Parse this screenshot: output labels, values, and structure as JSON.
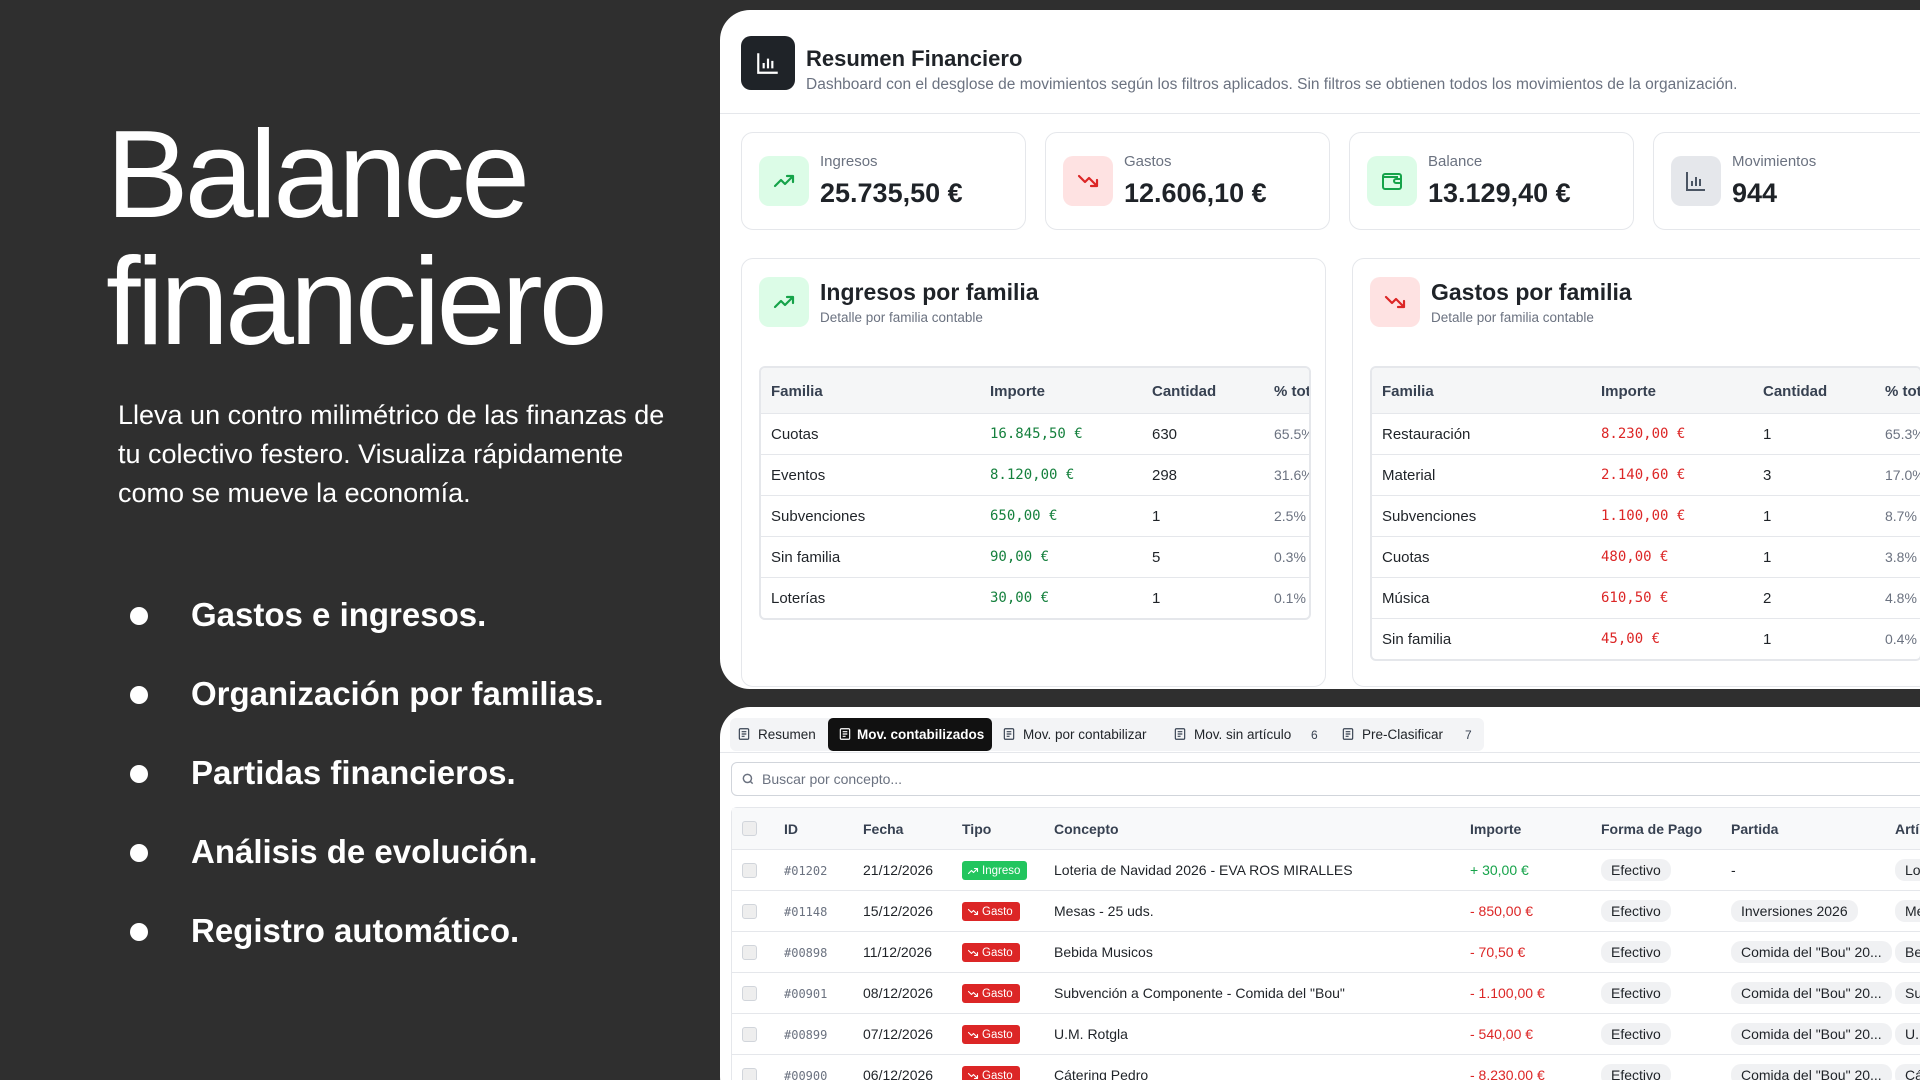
{
  "hero": {
    "title": "Balance financiero",
    "description": "Lleva un contro milimétrico de las finanzas de tu colectivo festero. Visualiza rápidamente como se mueve la economía.",
    "features": [
      "Gastos e ingresos.",
      "Organización por familias.",
      "Partidas financieros.",
      "Análisis de evolución.",
      "Registro automático."
    ]
  },
  "summary": {
    "title": "Resumen Financiero",
    "subtitle": "Dashboard con el desglose de movimientos según los filtros aplicados. Sin filtros se obtienen todos los movimientos de la organización.",
    "kpis": [
      {
        "label": "Ingresos",
        "value": "25.735,50 €"
      },
      {
        "label": "Gastos",
        "value": "12.606,10 €"
      },
      {
        "label": "Balance",
        "value": "13.129,40 €"
      },
      {
        "label": "Movimientos",
        "value": "944"
      }
    ],
    "family_tables": [
      {
        "title": "Ingresos por familia",
        "subtitle": "Detalle por familia contable",
        "columns": [
          "Familia",
          "Importe",
          "Cantidad",
          "% total"
        ],
        "rows": [
          [
            "Cuotas",
            "16.845,50 €",
            "630",
            "65.5%"
          ],
          [
            "Eventos",
            "8.120,00 €",
            "298",
            "31.6%"
          ],
          [
            "Subvenciones",
            "650,00 €",
            "1",
            "2.5%"
          ],
          [
            "Sin familia",
            "90,00 €",
            "5",
            "0.3%"
          ],
          [
            "Loterías",
            "30,00 €",
            "1",
            "0.1%"
          ]
        ]
      },
      {
        "title": "Gastos por familia",
        "subtitle": "Detalle por familia contable",
        "columns": [
          "Familia",
          "Importe",
          "Cantidad",
          "% total"
        ],
        "rows": [
          [
            "Restauración",
            "8.230,00 €",
            "1",
            "65.3%"
          ],
          [
            "Material",
            "2.140,60 €",
            "3",
            "17.0%"
          ],
          [
            "Subvenciones",
            "1.100,00 €",
            "1",
            "8.7%"
          ],
          [
            "Cuotas",
            "480,00 €",
            "1",
            "3.8%"
          ],
          [
            "Música",
            "610,50 €",
            "2",
            "4.8%"
          ],
          [
            "Sin familia",
            "45,00 €",
            "1",
            "0.4%"
          ]
        ]
      }
    ]
  },
  "movements": {
    "tabs": [
      {
        "label": "Resumen"
      },
      {
        "label": "Mov. contabilizados"
      },
      {
        "label": "Mov. por contabilizar"
      },
      {
        "label": "Mov. sin artículo",
        "count": 6
      },
      {
        "label": "Pre-Clasificar",
        "count": 7
      }
    ],
    "search_placeholder": "Buscar por concepto...",
    "columns": [
      "ID",
      "Fecha",
      "Tipo",
      "Concepto",
      "Importe",
      "Forma de Pago",
      "Partida",
      "Artí"
    ],
    "rows": [
      [
        "#01202",
        "21/12/2026",
        "Ingreso",
        "Loteria de Navidad 2026 - EVA ROS MIRALLES",
        "+ 30,00 €",
        "Efectivo",
        "-",
        "Lot"
      ],
      [
        "#01148",
        "15/12/2026",
        "Gasto",
        "Mesas - 25 uds.",
        "- 850,00 €",
        "Efectivo",
        "Inversiones 2026",
        "Me"
      ],
      [
        "#00898",
        "11/12/2026",
        "Gasto",
        "Bebida Musicos",
        "- 70,50 €",
        "Efectivo",
        "Comida del \"Bou\" 20...",
        "Be"
      ],
      [
        "#00901",
        "08/12/2026",
        "Gasto",
        "Subvención a Componente - Comida del \"Bou\"",
        "- 1.100,00 €",
        "Efectivo",
        "Comida del \"Bou\" 20...",
        "Su"
      ],
      [
        "#00899",
        "07/12/2026",
        "Gasto",
        "U.M. Rotgla",
        "- 540,00 €",
        "Efectivo",
        "Comida del \"Bou\" 20...",
        "U.M"
      ],
      [
        "#00900",
        "06/12/2026",
        "Gasto",
        "Cátering Pedro",
        "- 8.230,00 €",
        "Efectivo",
        "Comida del \"Bou\" 20...",
        "Cá"
      ]
    ]
  }
}
